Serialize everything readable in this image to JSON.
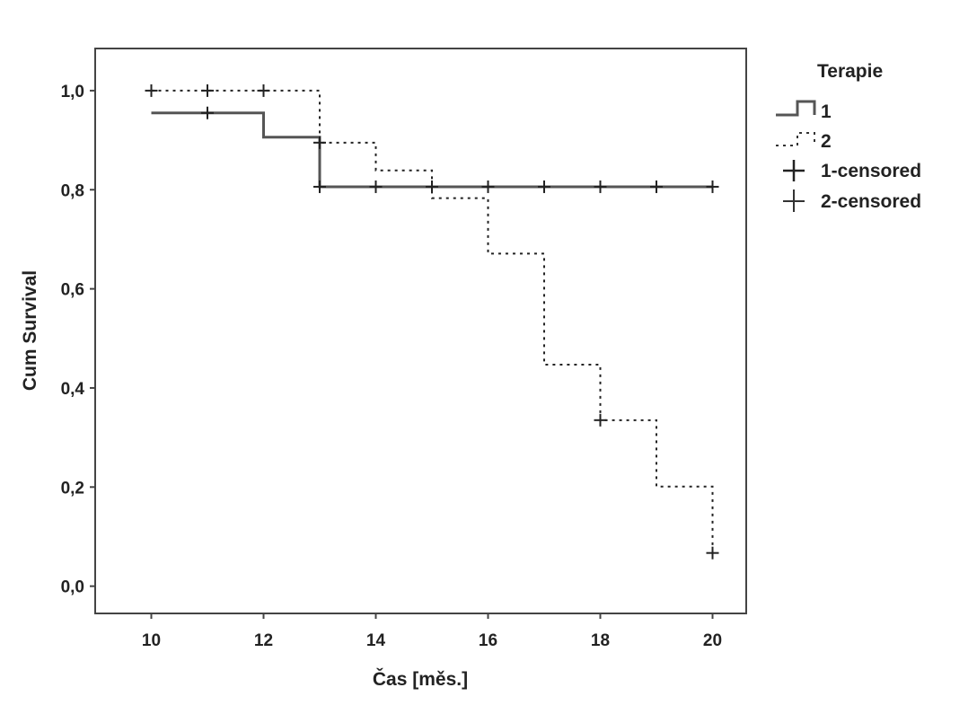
{
  "chart_data": {
    "type": "line",
    "title": "",
    "xlabel": "Čas [měs.]",
    "ylabel": "Cum Survival",
    "xlim": [
      9.0,
      20.6
    ],
    "ylim": [
      -0.055,
      1.085
    ],
    "xticks": [
      10,
      12,
      14,
      16,
      18,
      20
    ],
    "xtick_labels": [
      "10",
      "12",
      "14",
      "16",
      "18",
      "20"
    ],
    "yticks": [
      0.0,
      0.2,
      0.4,
      0.6,
      0.8,
      1.0
    ],
    "ytick_labels": [
      "0,0",
      "0,2",
      "0,4",
      "0,6",
      "0,8",
      "1,0"
    ],
    "grid": false,
    "legend": {
      "title": "Terapie",
      "placement": "right, outside plot",
      "entries": [
        "1",
        "2",
        "1-censored",
        "2-censored"
      ]
    },
    "series": [
      {
        "name": "1",
        "line_style": "solid",
        "color": "#555555",
        "steps": [
          [
            10,
            0.955
          ],
          [
            12,
            0.906
          ],
          [
            13,
            0.806
          ],
          [
            20,
            0.806
          ]
        ],
        "censored": [
          [
            11,
            0.955
          ],
          [
            13,
            0.806
          ],
          [
            14,
            0.806
          ],
          [
            15,
            0.806
          ],
          [
            16,
            0.806
          ],
          [
            17,
            0.806
          ],
          [
            18,
            0.806
          ],
          [
            19,
            0.806
          ],
          [
            20,
            0.806
          ]
        ]
      },
      {
        "name": "2",
        "line_style": "dotted",
        "color": "#222222",
        "steps": [
          [
            10,
            1.0
          ],
          [
            13,
            0.895
          ],
          [
            14,
            0.839
          ],
          [
            15,
            0.783
          ],
          [
            16,
            0.671
          ],
          [
            17,
            0.447
          ],
          [
            18,
            0.335
          ],
          [
            19,
            0.201
          ],
          [
            20,
            0.067
          ]
        ],
        "censored": [
          [
            10,
            1.0
          ],
          [
            11,
            1.0
          ],
          [
            12,
            1.0
          ],
          [
            13,
            0.895
          ],
          [
            18,
            0.335
          ],
          [
            20,
            0.067
          ]
        ]
      }
    ]
  }
}
